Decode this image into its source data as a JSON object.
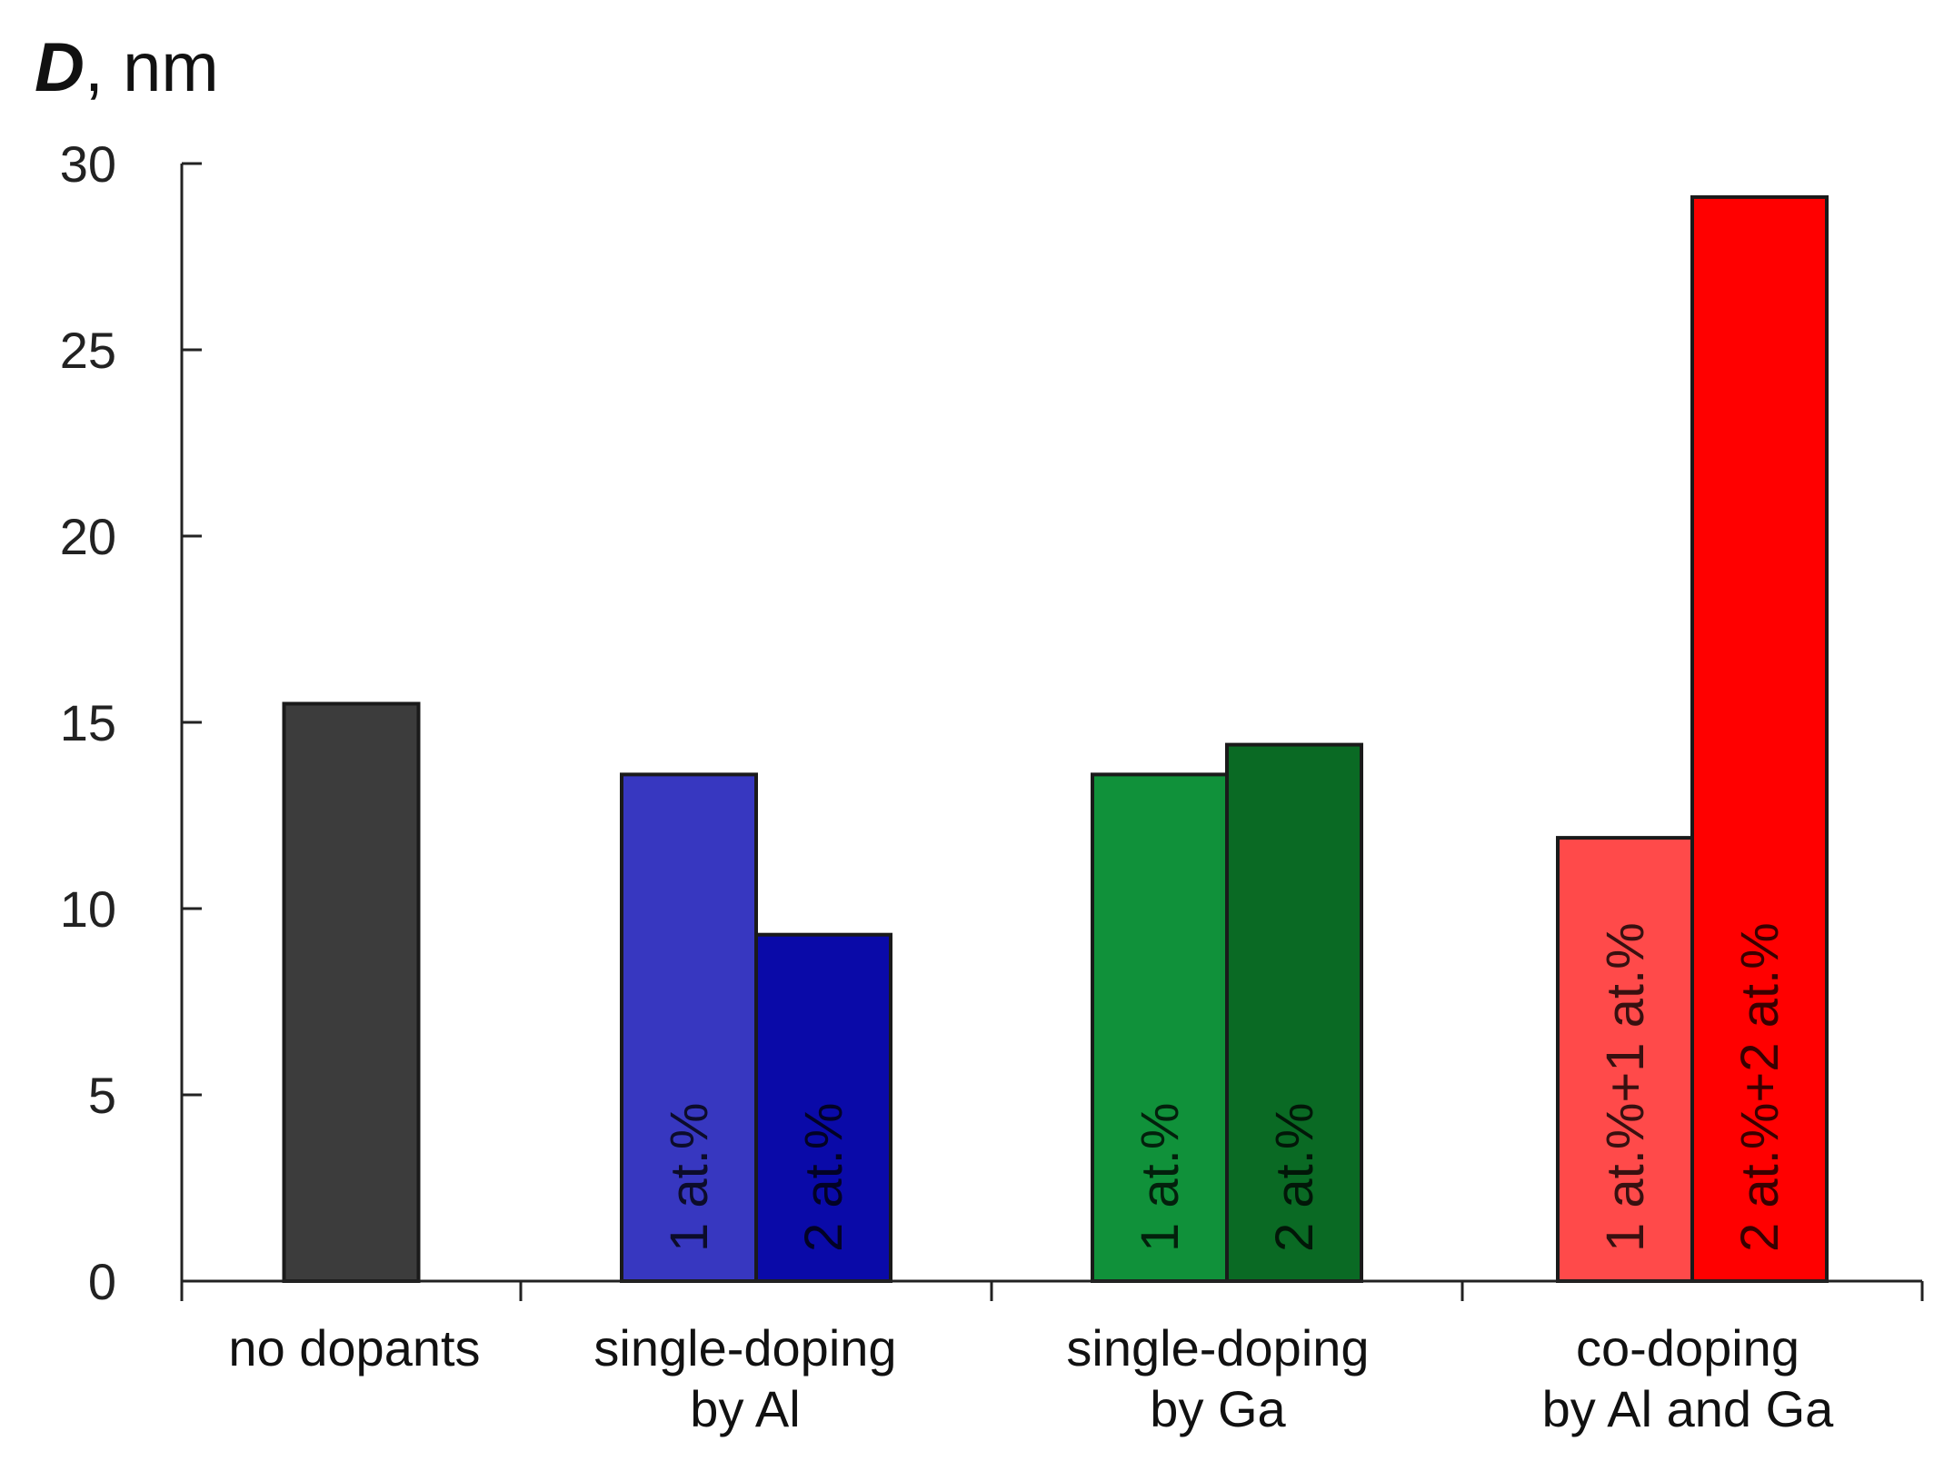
{
  "chart_data": {
    "type": "bar",
    "ylabel": {
      "symbol": "D",
      "unit": ", nm"
    },
    "ylim": [
      0,
      30
    ],
    "yticks": [
      0,
      5,
      10,
      15,
      20,
      25,
      30
    ],
    "groups": [
      {
        "name": "no dopants",
        "label_lines": [
          "no dopants"
        ],
        "bars": [
          {
            "value": 15.5,
            "label": "",
            "color": "#3c3c3c"
          }
        ]
      },
      {
        "name": "single-doping by Al",
        "label_lines": [
          "single-doping",
          "by Al"
        ],
        "bars": [
          {
            "value": 13.6,
            "label": "1 at.%",
            "color": "#3737c0"
          },
          {
            "value": 9.3,
            "label": "2 at.%",
            "color": "#0a0aa8"
          }
        ]
      },
      {
        "name": "single-doping by Ga",
        "label_lines": [
          "single-doping",
          "by Ga"
        ],
        "bars": [
          {
            "value": 13.6,
            "label": "1 at.%",
            "color": "#10913a"
          },
          {
            "value": 14.4,
            "label": "2 at.%",
            "color": "#0a6a24"
          }
        ]
      },
      {
        "name": "co-doping by Al and Ga",
        "label_lines": [
          "co-doping",
          "by Al and Ga"
        ],
        "bars": [
          {
            "value": 11.9,
            "label": "1 at.%+1 at.%",
            "color": "#ff4a4a"
          },
          {
            "value": 29.1,
            "label": "2 at.%+2 at.%",
            "color": "#ff0000"
          }
        ]
      }
    ]
  }
}
